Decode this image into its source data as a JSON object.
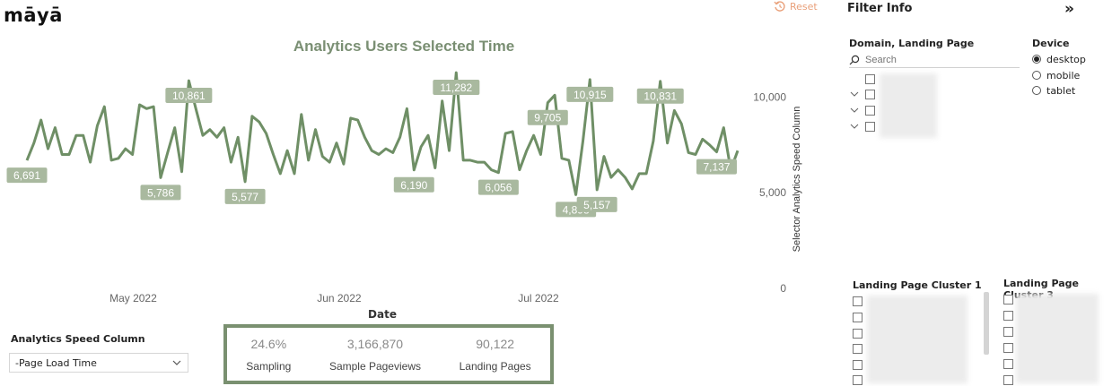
{
  "app": {
    "logo": "māyā",
    "reset_label": "Reset"
  },
  "chart_data": {
    "type": "line",
    "title": "Analytics Users Selected Time",
    "xlabel": "Date",
    "ylabel": "Selector Analytics Speed Column",
    "x_ticks": [
      "May 2022",
      "Jun 2022",
      "Jul 2022"
    ],
    "y_ticks": [
      "10,000",
      "5,000",
      "0"
    ],
    "ylim": [
      0,
      11800
    ],
    "x_start": "2022-04-15",
    "x_end": "2022-07-31",
    "series": [
      {
        "values": [
          6691,
          7600,
          8800,
          7300,
          8400,
          7000,
          7000,
          8000,
          8000,
          6600,
          8500,
          9500,
          6700,
          6800,
          7300,
          7000,
          9600,
          9400,
          9500,
          5786,
          7100,
          8400,
          6100,
          10861,
          9400,
          8000,
          8300,
          7900,
          8400,
          6600,
          7900,
          5577,
          9000,
          8700,
          8100,
          7000,
          6000,
          7200,
          6000,
          9100,
          6700,
          8300,
          6900,
          6600,
          7600,
          6500,
          8900,
          8800,
          7900,
          7200,
          7000,
          7300,
          7100,
          7900,
          9400,
          6190,
          7400,
          8000,
          6300,
          9800,
          7200,
          11282,
          6700,
          6700,
          6600,
          6600,
          6200,
          6056,
          8100,
          8200,
          6200,
          7200,
          8000,
          7000,
          9705,
          10100,
          6800,
          6700,
          4898,
          7700,
          10915,
          5157,
          6900,
          5800,
          6200,
          5800,
          5200,
          6000,
          6000,
          7700,
          10831,
          7600,
          9300,
          8600,
          7100,
          7000,
          7800,
          7500,
          7137,
          8400,
          6200,
          7200
        ]
      }
    ],
    "data_labels": [
      {
        "index": 0,
        "text": "6,691"
      },
      {
        "index": 19,
        "text": "5,786"
      },
      {
        "index": 23,
        "text": "10,861"
      },
      {
        "index": 31,
        "text": "5,577"
      },
      {
        "index": 55,
        "text": "6,190"
      },
      {
        "index": 61,
        "text": "11,282"
      },
      {
        "index": 67,
        "text": "6,056"
      },
      {
        "index": 74,
        "text": "9,705"
      },
      {
        "index": 78,
        "text": "4,898"
      },
      {
        "index": 80,
        "text": "10,915"
      },
      {
        "index": 81,
        "text": "5,157"
      },
      {
        "index": 90,
        "text": "10,831"
      },
      {
        "index": 98,
        "text": "7,137"
      }
    ],
    "line_color": "#6f8f66",
    "label_color": "#a9b99f"
  },
  "speed_slicer": {
    "label": "Analytics Speed Column",
    "value": "-Page Load Time"
  },
  "kpis": [
    {
      "value": "24.6%",
      "label": "Sampling"
    },
    {
      "value": "3,166,870",
      "label": "Sample Pageviews"
    },
    {
      "value": "90,122",
      "label": "Landing Pages"
    }
  ],
  "filters": {
    "title": "Filter Info",
    "collapse_icon": "»",
    "domain_slicer": {
      "label": "Domain, Landing Page",
      "search_placeholder": "Search"
    },
    "device": {
      "label": "Device",
      "options": [
        {
          "label": "desktop",
          "selected": true
        },
        {
          "label": "mobile",
          "selected": false
        },
        {
          "label": "tablet",
          "selected": false
        }
      ]
    },
    "cluster1_label": "Landing Page Cluster 1",
    "cluster3_label": "Landing Page Cluster 3"
  }
}
